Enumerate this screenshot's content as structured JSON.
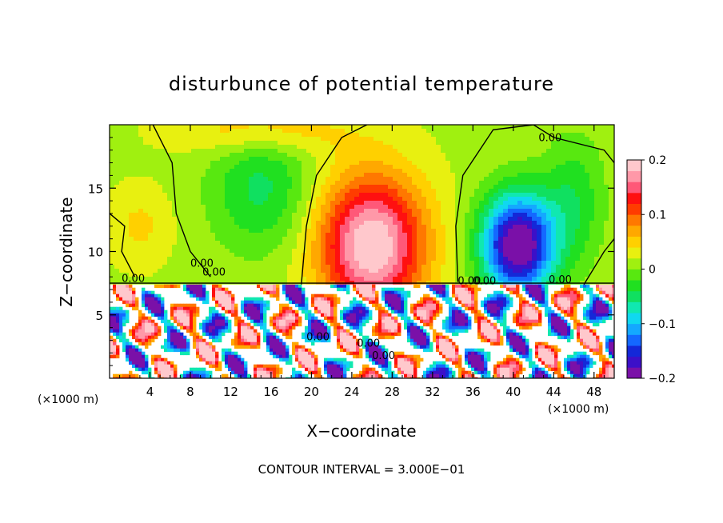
{
  "chart_data": {
    "type": "heatmap",
    "title": "disturbunce of potential temperature",
    "xlabel": "X−coordinate",
    "ylabel": "Z−coordinate",
    "x_unit_left": "(×1000 m)",
    "x_unit_right": "(×1000 m)",
    "xlim": [
      0,
      50
    ],
    "ylim": [
      0,
      20
    ],
    "xticks": [
      4,
      8,
      12,
      16,
      20,
      24,
      28,
      32,
      36,
      40,
      44,
      48
    ],
    "yticks": [
      5,
      10,
      15
    ],
    "footer": "CONTOUR INTERVAL = 3.000E−01",
    "colorbar": {
      "min": -0.2,
      "max": 0.2,
      "labels": [
        "0.2",
        "0.1",
        "0",
        "−0.1",
        "−0.2"
      ],
      "colors": [
        "#7a10a8",
        "#3c10c8",
        "#1428d8",
        "#1468ff",
        "#14a8ff",
        "#10d8f0",
        "#10e8b0",
        "#10e060",
        "#20e020",
        "#58e810",
        "#a0f010",
        "#e8f010",
        "#ffd000",
        "#ffa800",
        "#ff7800",
        "#ff3c00",
        "#ff1010",
        "#ff5878",
        "#ff98a8",
        "#ffc8cc"
      ]
    },
    "contour_labels": [
      "0.00",
      "0.00",
      "0.00",
      "0.00",
      "0.00",
      "0.00",
      "0.00",
      "0.00",
      "0.00",
      "0.00"
    ],
    "upper_layer": {
      "description_level": "z",
      "features": [
        {
          "name": "warm-core",
          "x": 25.5,
          "z": 11.5,
          "value": 0.18
        },
        {
          "name": "cold-core",
          "x": 40.5,
          "z": 11.5,
          "value": -0.2
        },
        {
          "name": "weak-cold",
          "x": 16,
          "z": 17.5,
          "value": -0.05
        }
      ]
    }
  }
}
